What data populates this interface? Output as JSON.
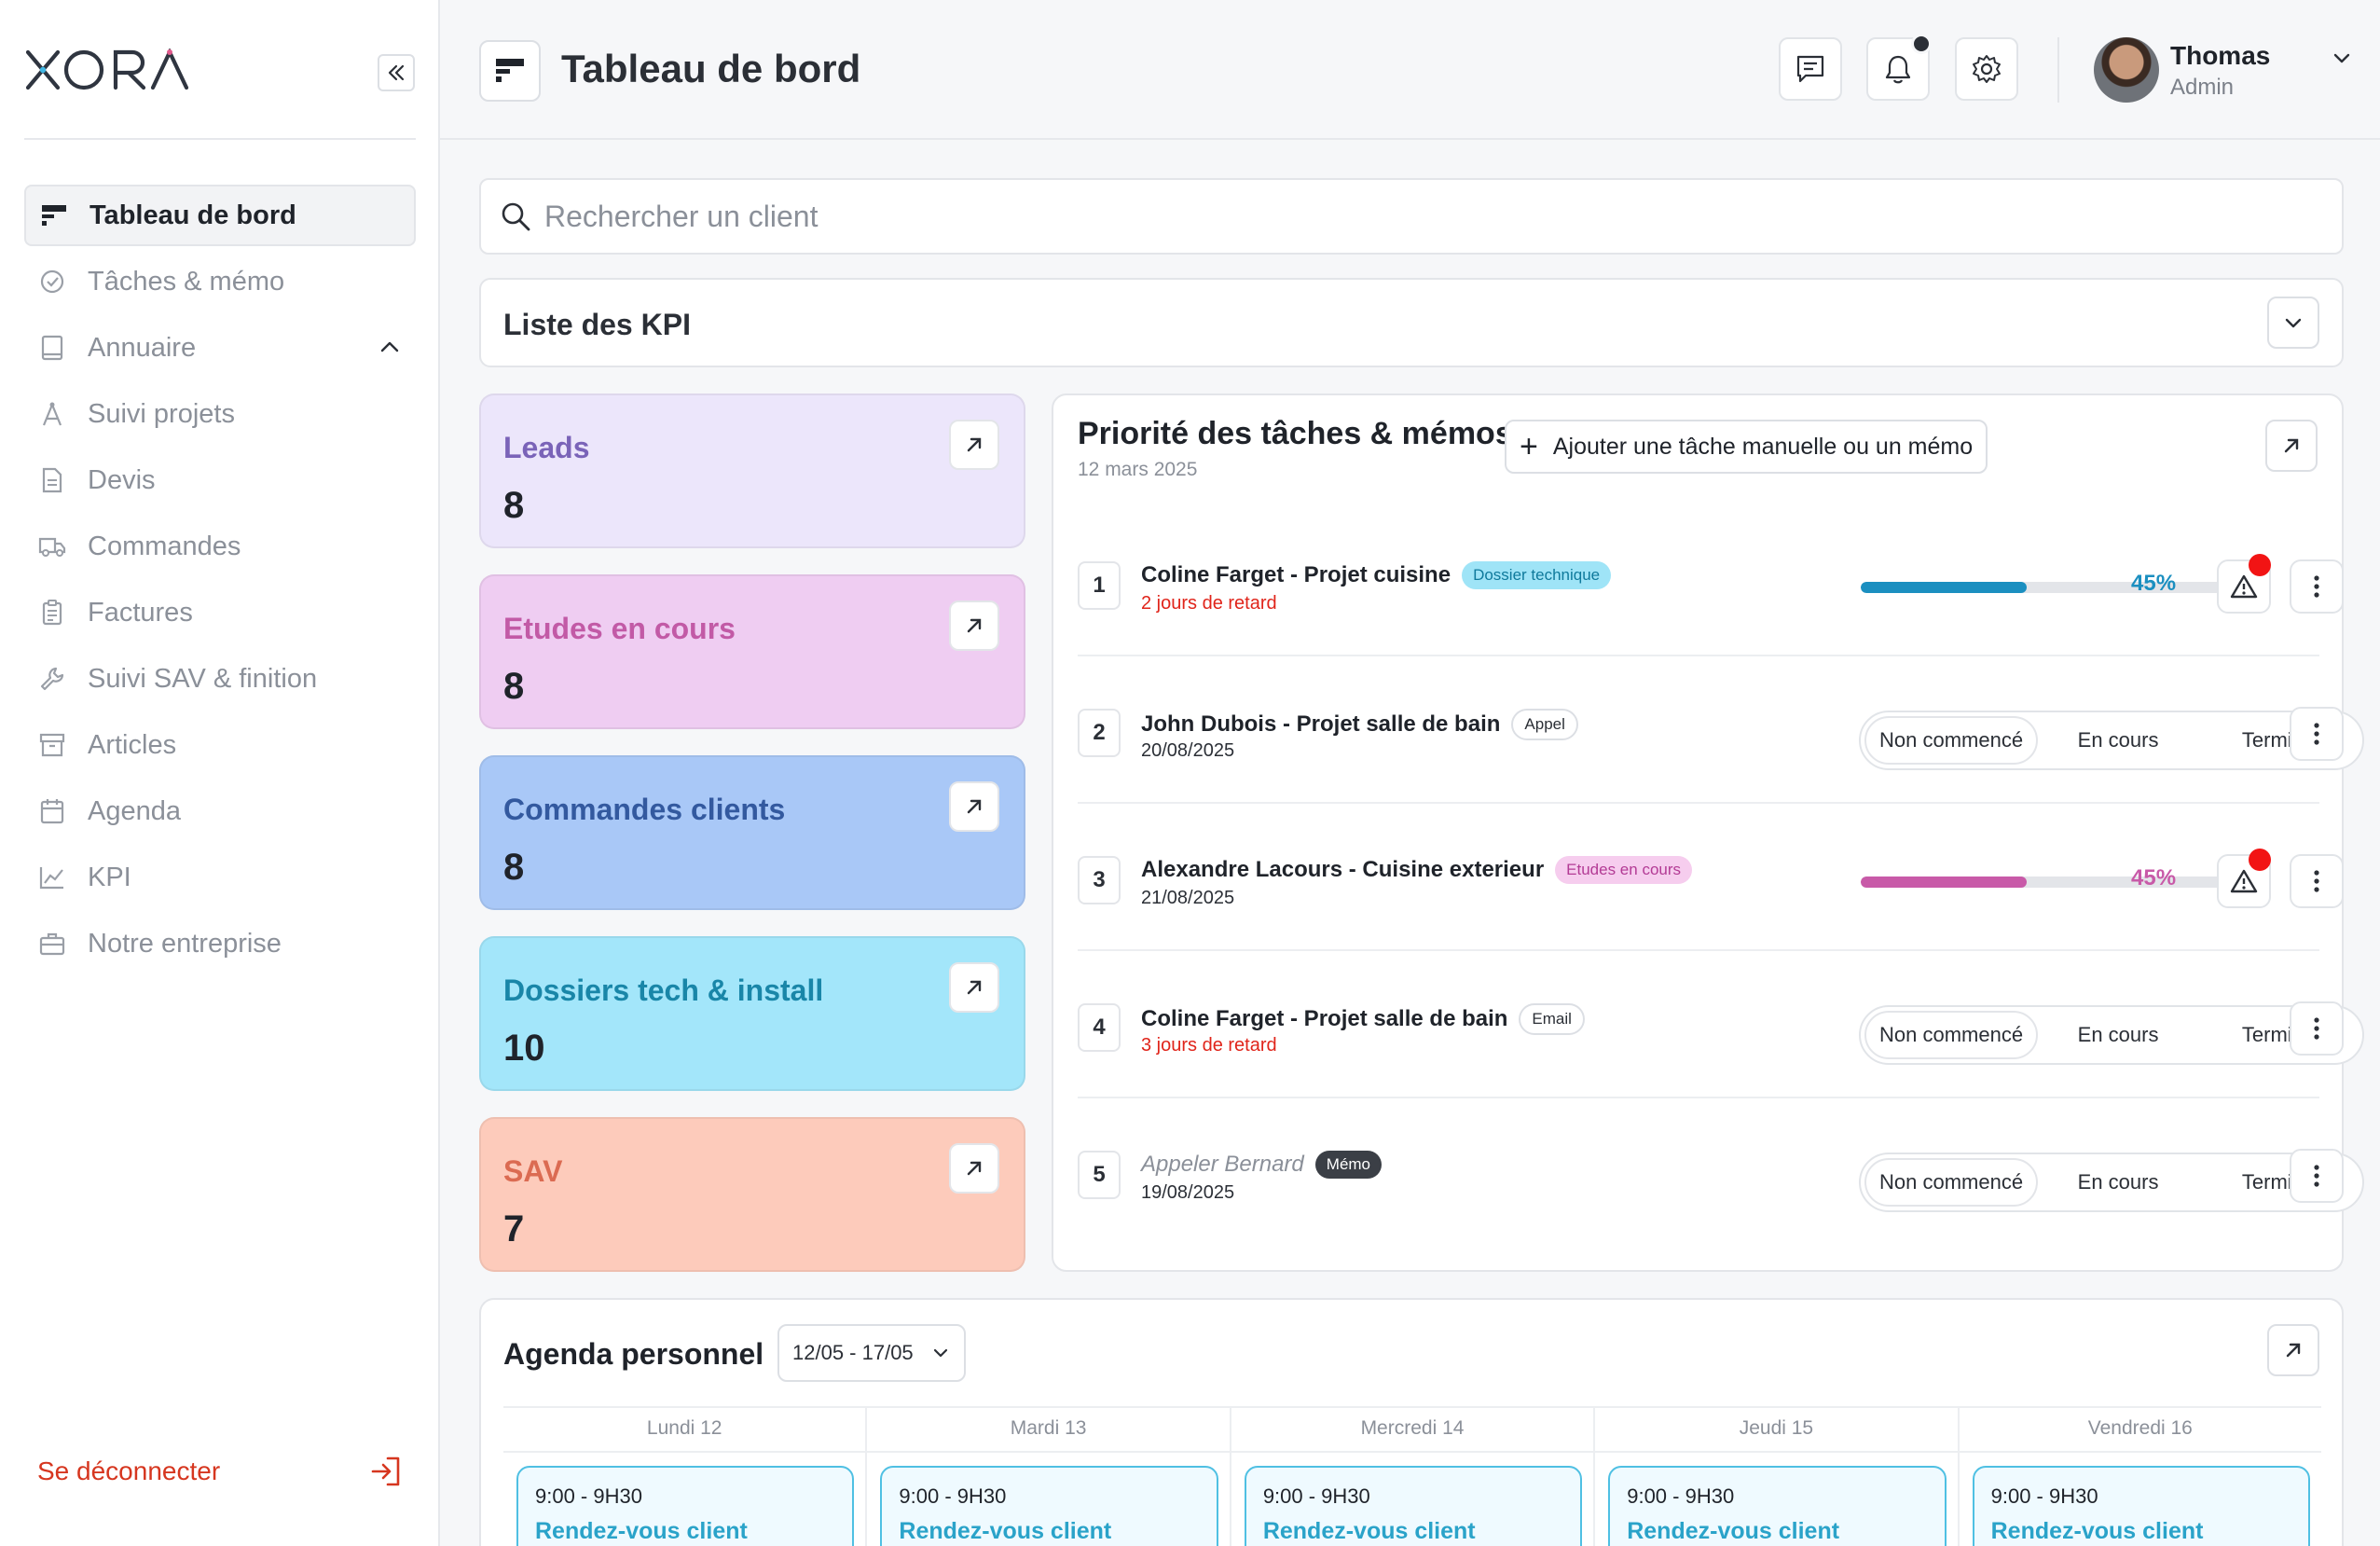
{
  "brand": {
    "logo_text": "XORA"
  },
  "sidebar": {
    "items": [
      {
        "label": "Tableau de bord",
        "icon": "dashboard-icon",
        "active": true
      },
      {
        "label": "Tâches & mémo",
        "icon": "check-circle-icon"
      },
      {
        "label": "Annuaire",
        "icon": "book-icon",
        "expanded": true
      },
      {
        "label": "Suivi projets",
        "icon": "compass-icon"
      },
      {
        "label": "Devis",
        "icon": "document-icon"
      },
      {
        "label": "Commandes",
        "icon": "truck-icon"
      },
      {
        "label": "Factures",
        "icon": "clipboard-icon"
      },
      {
        "label": "Suivi SAV & finition",
        "icon": "wrench-icon"
      },
      {
        "label": "Articles",
        "icon": "archive-icon"
      },
      {
        "label": "Agenda",
        "icon": "calendar-icon"
      },
      {
        "label": "KPI",
        "icon": "chart-line-icon"
      },
      {
        "label": "Notre entreprise",
        "icon": "briefcase-icon"
      }
    ],
    "logout_label": "Se déconnecter"
  },
  "header": {
    "title": "Tableau de bord",
    "user": {
      "name": "Thomas",
      "role": "Admin"
    }
  },
  "search": {
    "placeholder": "Rechercher un client",
    "value": ""
  },
  "kpi_list": {
    "title": "Liste des KPI"
  },
  "kpi_cards": [
    {
      "label": "Leads",
      "value": "8",
      "bg": "#ece6fb",
      "color": "#7a63b8"
    },
    {
      "label": "Etudes en cours",
      "value": "8",
      "bg": "#efcdf2",
      "color": "#c25aa6"
    },
    {
      "label": "Commandes clients",
      "value": "8",
      "bg": "#a9c8f7",
      "color": "#33599f"
    },
    {
      "label": "Dossiers tech & install",
      "value": "10",
      "bg": "#a3e6fa",
      "color": "#1986a8"
    },
    {
      "label": "SAV",
      "value": "7",
      "bg": "#fdcbbb",
      "color": "#db6b52"
    }
  ],
  "tasks": {
    "title": "Priorité des tâches & mémos",
    "date": "12 mars 2025",
    "add_label": "Ajouter une tâche manuelle ou un mémo",
    "status_options": [
      "Non commencé",
      "En cours",
      "Terminé"
    ],
    "rows": [
      {
        "num": "1",
        "name": "Coline Farget - Projet cuisine",
        "tag": "Dossier technique",
        "tag_type": "tech",
        "sub": "2 jours de retard",
        "late": true,
        "progress": 45,
        "progress_label": "45%",
        "color": "#1b8fc0",
        "alert": true
      },
      {
        "num": "2",
        "name": "John Dubois - Projet salle de bain",
        "tag": "Appel",
        "tag_type": "appel",
        "sub": "20/08/2025",
        "late": false,
        "status": "Non commencé"
      },
      {
        "num": "3",
        "name": "Alexandre Lacours - Cuisine exterieur",
        "tag": "Etudes en cours",
        "tag_type": "etudes",
        "sub": "21/08/2025",
        "late": false,
        "progress": 45,
        "progress_label": "45%",
        "color": "#c85aa8",
        "alert": true
      },
      {
        "num": "4",
        "name": "Coline Farget - Projet salle de bain",
        "tag": "Email",
        "tag_type": "email",
        "sub": "3 jours de retard",
        "late": true,
        "status": "Non commencé"
      },
      {
        "num": "5",
        "name": "Appeler Bernard",
        "tag": "Mémo",
        "tag_type": "memo",
        "sub": "19/08/2025",
        "late": false,
        "memo": true,
        "status": "Non commencé"
      }
    ]
  },
  "agenda": {
    "title": "Agenda personnel",
    "week": "12/05 - 17/05",
    "days": [
      {
        "label": "Lundi 12",
        "time": "9:00 - 9H30",
        "event": "Rendez-vous client"
      },
      {
        "label": "Mardi 13",
        "time": "9:00 - 9H30",
        "event": "Rendez-vous client"
      },
      {
        "label": "Mercredi 14",
        "time": "9:00 - 9H30",
        "event": "Rendez-vous client"
      },
      {
        "label": "Jeudi 15",
        "time": "9:00 - 9H30",
        "event": "Rendez-vous client"
      },
      {
        "label": "Vendredi 16",
        "time": "9:00 - 9H30",
        "event": "Rendez-vous client"
      }
    ]
  }
}
